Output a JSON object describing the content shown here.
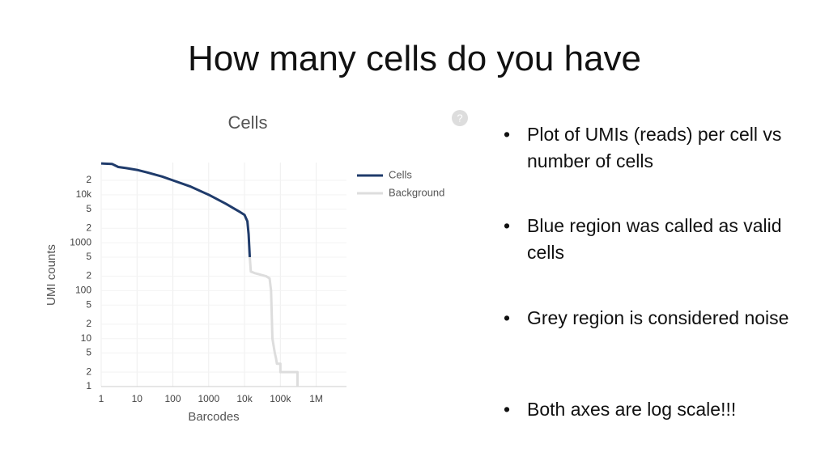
{
  "title": "How many cells do you have",
  "bullets": [
    "Plot of UMIs (reads) per cell vs number of cells",
    "Blue region was called as valid cells",
    "Grey region is considered noise",
    "Both axes are log scale!!!"
  ],
  "chart_data": {
    "type": "line",
    "title": "Cells",
    "annotations": [
      "?"
    ],
    "x_label": "Barcodes",
    "y_label": "UMI counts",
    "log_x": true,
    "log_y": true,
    "grid": true,
    "legend": "top-right",
    "xlim": [
      1,
      7000000
    ],
    "ylim": [
      1,
      47000
    ],
    "xticks": [
      1,
      10,
      100,
      1000,
      {
        "value": 10000,
        "label": "10k"
      },
      {
        "value": 100000,
        "label": "100k"
      },
      {
        "value": 1000000,
        "label": "1M"
      }
    ],
    "yticks": [
      1,
      2,
      5,
      10,
      {
        "value": 20,
        "label": "2"
      },
      {
        "value": 50,
        "label": "5"
      },
      100,
      {
        "value": 200,
        "label": "2"
      },
      {
        "value": 500,
        "label": "5"
      },
      1000,
      {
        "value": 2000,
        "label": "2"
      },
      {
        "value": 5000,
        "label": "5"
      },
      {
        "value": 10000,
        "label": "10k"
      },
      {
        "value": 20000,
        "label": "2"
      }
    ],
    "series": [
      {
        "name": "Cells",
        "color": "#1f3b6b",
        "x": [
          1,
          2,
          3,
          5,
          10,
          20,
          50,
          100,
          300,
          1000,
          3000,
          7000,
          10000,
          12000,
          13000,
          14000
        ],
        "values": [
          45000,
          44000,
          38000,
          36000,
          33000,
          29000,
          24000,
          20000,
          15000,
          10000,
          6500,
          4500,
          3800,
          2800,
          1500,
          500
        ]
      },
      {
        "name": "Background",
        "color": "#dddddd",
        "x": [
          14000,
          15000,
          20000,
          40000,
          50000,
          55000,
          60000,
          70000,
          75000,
          80000,
          100000,
          100000,
          300000,
          300000
        ],
        "values": [
          500,
          250,
          230,
          200,
          180,
          100,
          10,
          5,
          4,
          3,
          3,
          2,
          2,
          1
        ]
      }
    ]
  }
}
